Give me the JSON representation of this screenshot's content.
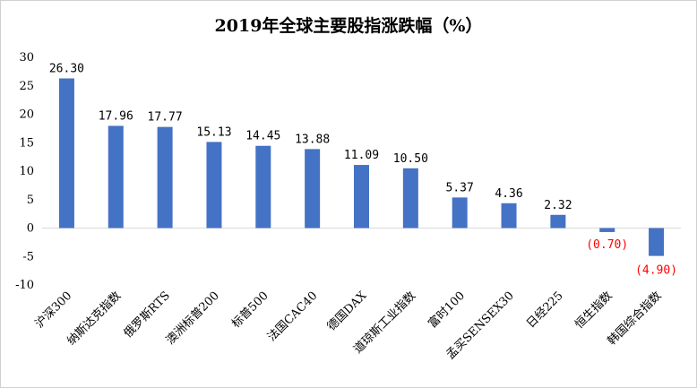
{
  "chart_data": {
    "type": "bar",
    "title": "2019年全球主要股指涨跌幅（%）",
    "categories": [
      "沪深300",
      "纳斯达克指数",
      "俄罗斯RTS",
      "澳洲标普200",
      "标普500",
      "法国CAC40",
      "德国DAX",
      "道琼斯工业指数",
      "富时100",
      "孟买SENSEX30",
      "日经225",
      "恒生指数",
      "韩国综合指数"
    ],
    "values": [
      26.3,
      17.96,
      17.77,
      15.13,
      14.45,
      13.88,
      11.09,
      10.5,
      5.37,
      4.36,
      2.32,
      -0.7,
      -4.9
    ],
    "data_labels": [
      "26.30",
      "17.96",
      "17.77",
      "15.13",
      "14.45",
      "13.88",
      "11.09",
      "10.50",
      "5.37",
      "4.36",
      "2.32",
      "(0.70)",
      "(4.90)"
    ],
    "ylim": [
      -10,
      30
    ],
    "yticks": [
      30,
      25,
      20,
      15,
      10,
      5,
      0,
      -5,
      -10
    ],
    "ytick_labels": [
      "30",
      "25",
      "20",
      "15",
      "10",
      "5",
      "0",
      "-5",
      "-10"
    ],
    "grid": false,
    "legend": "none",
    "xlabel": "",
    "ylabel": "",
    "colors": {
      "bar": "#4472C4",
      "positive_label": "#000000",
      "negative_label": "#FF0000",
      "axis": "#d9d9d9"
    }
  }
}
